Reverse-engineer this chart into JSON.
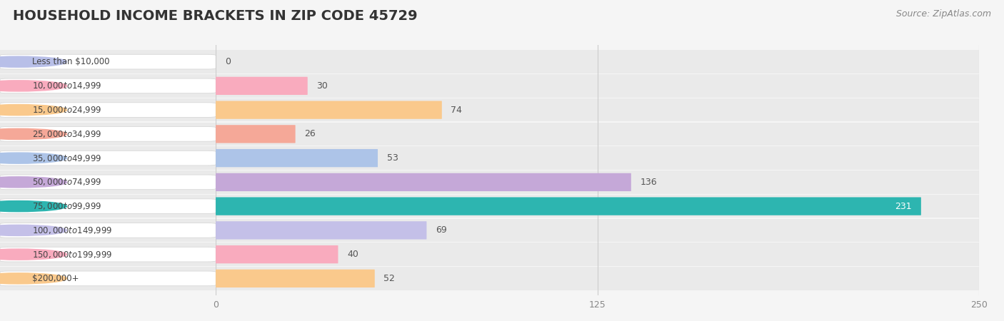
{
  "title": "HOUSEHOLD INCOME BRACKETS IN ZIP CODE 45729",
  "source": "Source: ZipAtlas.com",
  "categories": [
    "Less than $10,000",
    "$10,000 to $14,999",
    "$15,000 to $24,999",
    "$25,000 to $34,999",
    "$35,000 to $49,999",
    "$50,000 to $74,999",
    "$75,000 to $99,999",
    "$100,000 to $149,999",
    "$150,000 to $199,999",
    "$200,000+"
  ],
  "values": [
    0,
    30,
    74,
    26,
    53,
    136,
    231,
    69,
    40,
    52
  ],
  "bar_colors": [
    "#b8bfe8",
    "#f9abbe",
    "#fac98c",
    "#f5a898",
    "#adc4e8",
    "#c5a8d8",
    "#2db5b0",
    "#c4c0e8",
    "#f9abbe",
    "#fac98c"
  ],
  "xlim": [
    0,
    250
  ],
  "xticks": [
    0,
    125,
    250
  ],
  "background_color": "#f5f5f5",
  "row_bg_color": "#eaeaea",
  "row_bg_alt_color": "#f0f0f0",
  "title_fontsize": 14,
  "source_fontsize": 9,
  "bar_height": 0.65,
  "value_label_color": "#555555",
  "teal_index": 6
}
